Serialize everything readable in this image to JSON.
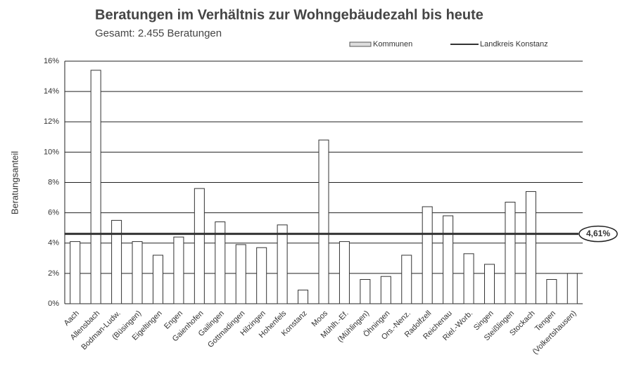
{
  "chart_data": {
    "type": "bar",
    "title": "Beratungen im Verhältnis zur Wohngebäudezahl bis heute",
    "subtitle": "Gesamt: 2.455 Beratungen",
    "y_label": "Beratungsanteil",
    "categories": [
      "Aach",
      "Allensbach",
      "Bodman-Ludw.",
      "(Büsingen)",
      "Eigeltingen",
      "Engen",
      "Gaienhofen",
      "Gailingen",
      "Gottmadingen",
      "Hilzingen",
      "Hohenfels",
      "Konstanz",
      "Moos",
      "Mühlh.-Ef.",
      "(Mühlingen)",
      "Öhningen",
      "Ors.-Nenz.",
      "Radolfzell",
      "Reichenau",
      "Riel.-Worb.",
      "Singen",
      "Steißlingen",
      "Stockach",
      "Tengen",
      "(Volkertshausen)"
    ],
    "series": [
      {
        "name": "Kommunen",
        "color": "#ffffff",
        "values": [
          4.1,
          15.4,
          5.5,
          4.1,
          3.2,
          4.4,
          7.6,
          5.4,
          3.9,
          3.7,
          5.2,
          0.9,
          10.8,
          4.1,
          1.6,
          1.8,
          3.2,
          6.4,
          5.8,
          3.3,
          2.6,
          6.7,
          7.4,
          1.6,
          2.0
        ]
      }
    ],
    "reference_line": {
      "name": "Landkreis Konstanz",
      "value": 4.61,
      "label": "4,61%",
      "color": "#333333"
    },
    "ylim": [
      0,
      16
    ],
    "yticks": [
      {
        "value": 0,
        "label": "0%"
      },
      {
        "value": 2,
        "label": "2%"
      },
      {
        "value": 4,
        "label": "4%"
      },
      {
        "value": 6,
        "label": "6%"
      },
      {
        "value": 8,
        "label": "8%"
      },
      {
        "value": 10,
        "label": "10%"
      },
      {
        "value": 12,
        "label": "12%"
      },
      {
        "value": 14,
        "label": "14%"
      },
      {
        "value": 16,
        "label": "16%"
      }
    ],
    "grid": true
  }
}
